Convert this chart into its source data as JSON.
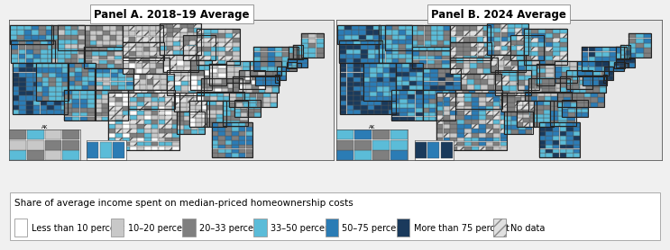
{
  "title_left": "Panel A. 2018–19 Average",
  "title_right": "Panel B. 2024 Average",
  "legend_title": "Share of average income spent on median-priced homeownership costs",
  "legend_items": [
    {
      "label": "Less than 10 percent",
      "color": "#ffffff",
      "hatch": null,
      "edgecolor": "#999999"
    },
    {
      "label": "10–20 percent",
      "color": "#c8c8c8",
      "hatch": null,
      "edgecolor": "#999999"
    },
    {
      "label": "20–33 percent",
      "color": "#7f7f7f",
      "hatch": null,
      "edgecolor": "#999999"
    },
    {
      "label": "33–50 percent",
      "color": "#5bbcd8",
      "hatch": null,
      "edgecolor": "#999999"
    },
    {
      "label": "50–75 percent",
      "color": "#2b7cb5",
      "hatch": null,
      "edgecolor": "#999999"
    },
    {
      "label": "More than 75 percent",
      "color": "#1a3a5c",
      "hatch": null,
      "edgecolor": "#999999"
    },
    {
      "label": "No data",
      "color": "#e0e0e0",
      "hatch": "///",
      "edgecolor": "#888888"
    }
  ],
  "background_color": "#f0f0f0",
  "panel_background": "#ffffff",
  "fig_width": 7.25,
  "fig_height": 2.81,
  "title_fontsize": 8.5,
  "legend_title_fontsize": 7.5,
  "legend_item_fontsize": 7.0
}
